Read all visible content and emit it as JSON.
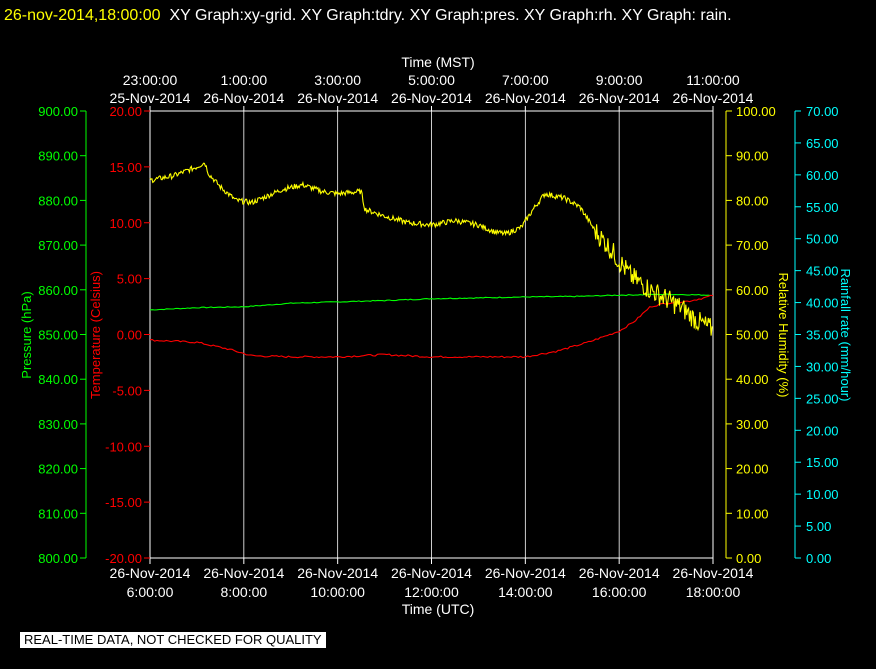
{
  "header": {
    "timestamp": "26-nov-2014,18:00:00",
    "titles": "XY Graph:xy-grid.  XY Graph:tdry.  XY Graph:pres.  XY Graph:rh.  XY Graph: rain."
  },
  "footer": {
    "quality_note": "REAL-TIME DATA, NOT CHECKED FOR QUALITY"
  },
  "colors": {
    "background": "#000000",
    "grid": "#ffffff",
    "pressure": "#00ff00",
    "temperature": "#ff0000",
    "humidity": "#ffff00",
    "rain": "#00ffff"
  },
  "chart_data": {
    "type": "line",
    "top_axis": {
      "label": "Time (MST)",
      "ticks": [
        {
          "time": "23:00:00",
          "date": "25-Nov-2014"
        },
        {
          "time": "1:00:00",
          "date": "26-Nov-2014"
        },
        {
          "time": "3:00:00",
          "date": "26-Nov-2014"
        },
        {
          "time": "5:00:00",
          "date": "26-Nov-2014"
        },
        {
          "time": "7:00:00",
          "date": "26-Nov-2014"
        },
        {
          "time": "9:00:00",
          "date": "26-Nov-2014"
        },
        {
          "time": "11:00:00",
          "date": "26-Nov-2014"
        }
      ]
    },
    "bottom_axis": {
      "label": "Time (UTC)",
      "range": [
        "2014-11-26T06:00:00Z",
        "2014-11-26T18:00:00Z"
      ],
      "ticks": [
        {
          "date": "26-Nov-2014",
          "time": "6:00:00"
        },
        {
          "date": "26-Nov-2014",
          "time": "8:00:00"
        },
        {
          "date": "26-Nov-2014",
          "time": "10:00:00"
        },
        {
          "date": "26-Nov-2014",
          "time": "12:00:00"
        },
        {
          "date": "26-Nov-2014",
          "time": "14:00:00"
        },
        {
          "date": "26-Nov-2014",
          "time": "16:00:00"
        },
        {
          "date": "26-Nov-2014",
          "time": "18:00:00"
        }
      ],
      "grid": true
    },
    "axes": {
      "pressure": {
        "label": "Pressure (hPa)",
        "range": [
          800,
          900
        ],
        "ticks": [
          "800.00",
          "810.00",
          "820.00",
          "830.00",
          "840.00",
          "850.00",
          "860.00",
          "870.00",
          "880.00",
          "890.00",
          "900.00"
        ]
      },
      "temperature": {
        "label": "Temperature (Celsius)",
        "range": [
          -20,
          20
        ],
        "ticks": [
          "-20.00",
          "-15.00",
          "-10.00",
          "-5.00",
          "0.00",
          "5.00",
          "10.00",
          "15.00",
          "20.00"
        ]
      },
      "humidity": {
        "label": "Relative Humidity (%)",
        "range": [
          0,
          100
        ],
        "ticks": [
          "0.00",
          "10.00",
          "20.00",
          "30.00",
          "40.00",
          "50.00",
          "60.00",
          "70.00",
          "80.00",
          "90.00",
          "100.00"
        ]
      },
      "rain": {
        "label": "Rainfall rate (mm/hour)",
        "range": [
          0,
          70
        ],
        "ticks": [
          "0.00",
          "5.00",
          "10.00",
          "15.00",
          "20.00",
          "25.00",
          "30.00",
          "35.00",
          "40.00",
          "45.00",
          "50.00",
          "55.00",
          "60.00",
          "65.00",
          "70.00"
        ]
      }
    },
    "series": [
      {
        "name": "pres",
        "axis": "pressure",
        "noise": 0.1,
        "points": [
          [
            "06:00",
            855.5
          ],
          [
            "07:00",
            856.0
          ],
          [
            "08:00",
            856.2
          ],
          [
            "09:00",
            857.0
          ],
          [
            "10:00",
            857.3
          ],
          [
            "11:00",
            857.6
          ],
          [
            "12:00",
            858.0
          ],
          [
            "13:00",
            858.2
          ],
          [
            "14:00",
            858.4
          ],
          [
            "15:00",
            858.5
          ],
          [
            "16:00",
            858.8
          ],
          [
            "17:00",
            859.0
          ],
          [
            "18:00",
            858.8
          ]
        ]
      },
      {
        "name": "tdry",
        "axis": "temperature",
        "noise": 0.08,
        "points": [
          [
            "06:00",
            -0.5
          ],
          [
            "07:00",
            -0.7
          ],
          [
            "07:40",
            -1.3
          ],
          [
            "08:10",
            -1.9
          ],
          [
            "09:00",
            -2.0
          ],
          [
            "10:00",
            -2.0
          ],
          [
            "11:00",
            -1.8
          ],
          [
            "12:00",
            -2.0
          ],
          [
            "13:00",
            -2.0
          ],
          [
            "14:00",
            -2.0
          ],
          [
            "14:40",
            -1.5
          ],
          [
            "15:20",
            -0.7
          ],
          [
            "16:00",
            0.3
          ],
          [
            "16:20",
            1.2
          ],
          [
            "16:40",
            2.5
          ],
          [
            "17:00",
            2.8
          ],
          [
            "17:30",
            3.0
          ],
          [
            "17:50",
            3.3
          ],
          [
            "18:00",
            3.5
          ]
        ]
      },
      {
        "name": "rh",
        "axis": "humidity",
        "noise": 0.6,
        "points": [
          [
            "06:00",
            84.5
          ],
          [
            "06:30",
            85.5
          ],
          [
            "07:00",
            87.5
          ],
          [
            "07:10",
            88.5
          ],
          [
            "07:15",
            86.0
          ],
          [
            "07:30",
            83.0
          ],
          [
            "07:50",
            80.0
          ],
          [
            "08:10",
            79.5
          ],
          [
            "08:30",
            81.0
          ],
          [
            "08:50",
            82.5
          ],
          [
            "09:15",
            83.5
          ],
          [
            "09:40",
            82.0
          ],
          [
            "10:00",
            81.5
          ],
          [
            "10:30",
            82.0
          ],
          [
            "10:35",
            78.0
          ],
          [
            "11:00",
            76.5
          ],
          [
            "11:30",
            75.0
          ],
          [
            "12:00",
            74.5
          ],
          [
            "12:30",
            75.5
          ],
          [
            "13:00",
            74.5
          ],
          [
            "13:20",
            73.0
          ],
          [
            "13:35",
            72.5
          ],
          [
            "13:55",
            74.0
          ],
          [
            "14:10",
            78.0
          ],
          [
            "14:25",
            81.5
          ],
          [
            "14:50",
            80.5
          ],
          [
            "15:10",
            78.5
          ],
          [
            "15:30",
            73.0
          ],
          [
            "15:45",
            70.0
          ],
          [
            "16:00",
            66.5
          ],
          [
            "16:15",
            63.0
          ],
          [
            "16:40",
            60.0
          ],
          [
            "17:00",
            58.0
          ],
          [
            "17:20",
            56.0
          ],
          [
            "17:40",
            53.0
          ],
          [
            "18:00",
            51.0
          ]
        ]
      },
      {
        "name": "rain",
        "axis": "rain",
        "noise": 0,
        "points": [
          [
            "06:00",
            0
          ],
          [
            "18:00",
            0
          ]
        ]
      }
    ]
  }
}
